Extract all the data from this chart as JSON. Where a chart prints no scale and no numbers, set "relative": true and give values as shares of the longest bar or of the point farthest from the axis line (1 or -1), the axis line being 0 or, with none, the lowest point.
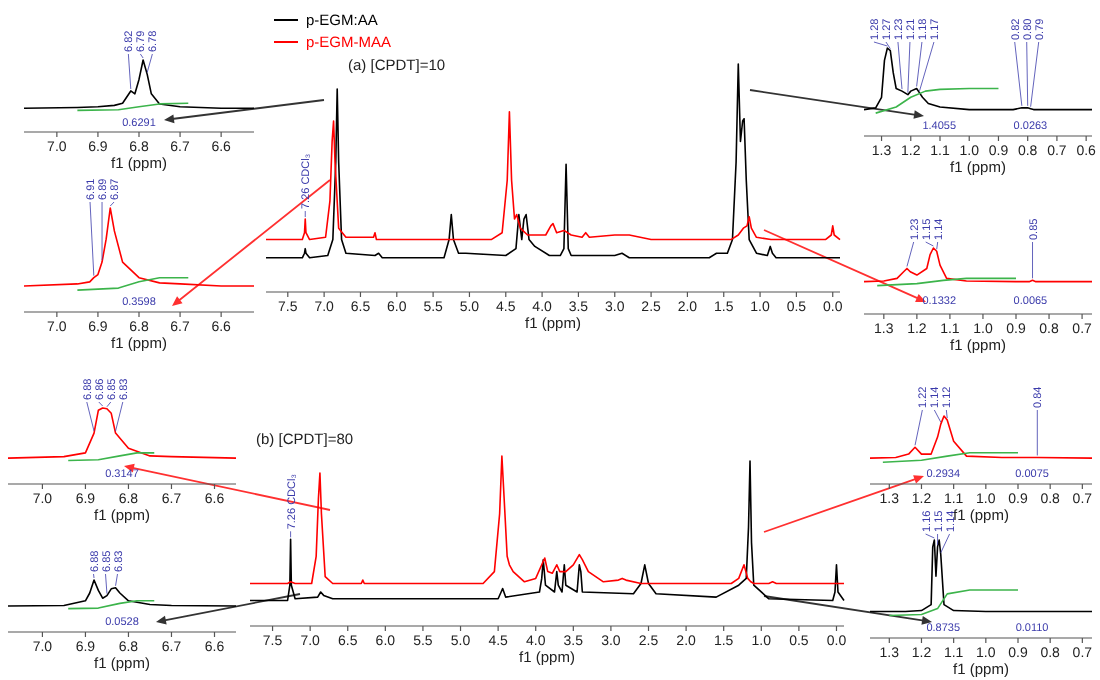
{
  "chart_data": [
    {
      "type": "line",
      "title": "(a) [CPDT]=10",
      "xlabel": "f1 (ppm)",
      "relative": true,
      "xlim": [
        7.8,
        -0.1
      ],
      "xticks": [
        7.5,
        {
          "value": 7,
          "label": "7.0"
        },
        6.5,
        {
          "value": 6,
          "label": "6.0"
        },
        5.5,
        {
          "value": 5,
          "label": "5.0"
        },
        4.5,
        {
          "value": 4,
          "label": "4.0"
        },
        3.5,
        {
          "value": 3,
          "label": "3.0"
        },
        2.5,
        {
          "value": 2,
          "label": "2.0"
        },
        1.5,
        {
          "value": 1,
          "label": "1.0"
        },
        0.5,
        {
          "value": 0,
          "label": "0.0"
        }
      ],
      "legend": "top left",
      "line_style": "solid",
      "series": [
        {
          "name": "p-EGM:AA",
          "color": "#000000",
          "x": [
            7.8,
            7.3,
            7.27,
            7.26,
            7.25,
            7.2,
            6.95,
            6.88,
            6.84,
            6.82,
            6.8,
            6.76,
            6.7,
            6.3,
            6.25,
            6.2,
            5.35,
            5.28,
            5.25,
            5.22,
            5.15,
            5.05,
            4.5,
            4.36,
            4.32,
            4.28,
            4.25,
            4.22,
            4.18,
            4.1,
            3.9,
            3.75,
            3.7,
            3.67,
            3.64,
            3.6,
            3.0,
            2.9,
            2.8,
            1.7,
            1.6,
            1.45,
            1.38,
            1.33,
            1.3,
            1.27,
            1.24,
            1.22,
            1.19,
            1.15,
            1.05,
            0.9,
            0.86,
            0.83,
            0.78,
            0.5,
            -0.1
          ],
          "values": [
            0.15,
            0.15,
            0.17,
            0.19,
            0.17,
            0.15,
            0.16,
            0.23,
            0.57,
            0.89,
            0.57,
            0.23,
            0.17,
            0.16,
            0.17,
            0.15,
            0.15,
            0.23,
            0.34,
            0.23,
            0.17,
            0.17,
            0.16,
            0.19,
            0.34,
            0.23,
            0.32,
            0.34,
            0.23,
            0.2,
            0.16,
            0.16,
            0.19,
            0.56,
            0.19,
            0.16,
            0.16,
            0.17,
            0.15,
            0.15,
            0.17,
            0.17,
            0.23,
            0.57,
            1,
            0.66,
            0.75,
            0.76,
            0.49,
            0.23,
            0.17,
            0.16,
            0.2,
            0.17,
            0.15,
            0.15,
            0.15
          ]
        },
        {
          "name": "p-EGM-MAA",
          "color": "#ff0000",
          "x": [
            7.8,
            7.3,
            7.27,
            7.26,
            7.25,
            7.2,
            6.98,
            6.92,
            6.89,
            6.87,
            6.85,
            6.8,
            6.7,
            6.32,
            6.3,
            6.28,
            4.7,
            4.55,
            4.48,
            4.45,
            4.42,
            4.38,
            4.35,
            4.3,
            4.2,
            3.95,
            3.88,
            3.85,
            3.8,
            3.7,
            3.6,
            3.45,
            3.4,
            3.35,
            3.0,
            2.8,
            2.5,
            1.4,
            1.3,
            1.23,
            1.18,
            1.15,
            1.12,
            1.05,
            0.85,
            0.1,
            0.02,
            0,
            -0.02,
            -0.1
          ],
          "values": [
            0.23,
            0.23,
            0.26,
            0.32,
            0.26,
            0.23,
            0.24,
            0.4,
            0.66,
            0.75,
            0.57,
            0.28,
            0.24,
            0.24,
            0.26,
            0.23,
            0.23,
            0.26,
            0.49,
            0.79,
            0.49,
            0.32,
            0.34,
            0.28,
            0.25,
            0.25,
            0.29,
            0.3,
            0.26,
            0.27,
            0.25,
            0.24,
            0.26,
            0.24,
            0.25,
            0.25,
            0.23,
            0.23,
            0.25,
            0.28,
            0.29,
            0.33,
            0.28,
            0.24,
            0.23,
            0.23,
            0.25,
            0.29,
            0.25,
            0.23
          ]
        }
      ],
      "annotations": [
        {
          "text": "7.26 CDCl₃",
          "x": 7.26,
          "y": 0.32
        }
      ]
    },
    {
      "type": "line",
      "xlabel": "f1 (ppm)",
      "relative": true,
      "xlim": [
        7.08,
        6.52
      ],
      "xticks": [
        {
          "value": 7,
          "label": "7.0"
        },
        6.9,
        6.8,
        6.7,
        6.6
      ],
      "series": [
        {
          "color": "#000000",
          "x": [
            7.08,
            6.95,
            6.9,
            6.86,
            6.84,
            6.82,
            6.81,
            6.8,
            6.79,
            6.78,
            6.77,
            6.75,
            6.7,
            6.6,
            6.52
          ],
          "values": [
            0.33,
            0.34,
            0.35,
            0.37,
            0.4,
            0.57,
            0.53,
            0.73,
            1,
            0.8,
            0.53,
            0.39,
            0.35,
            0.33,
            0.33
          ]
        },
        {
          "color": "#3cb44b",
          "x": [
            6.95,
            6.85,
            6.8,
            6.75,
            6.68
          ],
          "values": [
            0.3,
            0.31,
            0.35,
            0.39,
            0.4
          ]
        }
      ],
      "annotations": [
        {
          "text": "6.82",
          "x": 6.82,
          "y": 0.57
        },
        {
          "text": "6.79",
          "x": 6.79,
          "y": 1
        },
        {
          "text": "6.78",
          "x": 6.78,
          "y": 0.8
        },
        "0.6291"
      ]
    },
    {
      "type": "line",
      "xlabel": "f1 (ppm)",
      "relative": true,
      "xlim": [
        7.08,
        6.52
      ],
      "xticks": [
        {
          "value": 7,
          "label": "7.0"
        },
        6.9,
        6.8,
        6.7,
        6.6
      ],
      "series": [
        {
          "color": "#ff0000",
          "x": [
            7.08,
            6.95,
            6.92,
            6.91,
            6.9,
            6.89,
            6.88,
            6.87,
            6.86,
            6.84,
            6.8,
            6.75,
            6.7,
            6.6,
            6.52
          ],
          "values": [
            0.25,
            0.27,
            0.29,
            0.33,
            0.36,
            0.48,
            0.7,
            1,
            0.78,
            0.48,
            0.33,
            0.28,
            0.27,
            0.25,
            0.25
          ]
        },
        {
          "color": "#3cb44b",
          "x": [
            6.95,
            6.85,
            6.8,
            6.75,
            6.68
          ],
          "values": [
            0.21,
            0.23,
            0.29,
            0.33,
            0.33
          ]
        }
      ],
      "annotations": [
        {
          "text": "6.91",
          "x": 6.91,
          "y": 0.33
        },
        {
          "text": "6.89",
          "x": 6.89,
          "y": 0.48
        },
        {
          "text": "6.87",
          "x": 6.87,
          "y": 1
        },
        "0.3598"
      ]
    },
    {
      "type": "line",
      "xlabel": "f1 (ppm)",
      "relative": true,
      "xlim": [
        1.36,
        0.58
      ],
      "xticks": [
        1.3,
        1.2,
        1.1,
        {
          "value": 1,
          "label": "1.0"
        },
        0.9,
        0.8,
        0.7,
        0.6
      ],
      "series": [
        {
          "color": "#000000",
          "x": [
            1.36,
            1.32,
            1.3,
            1.29,
            1.28,
            1.27,
            1.26,
            1.25,
            1.23,
            1.21,
            1.2,
            1.18,
            1.17,
            1.16,
            1.14,
            1.1,
            1.0,
            0.85,
            0.82,
            0.8,
            0.79,
            0.78,
            0.7,
            0.58
          ],
          "values": [
            0.3,
            0.32,
            0.44,
            0.86,
            1,
            0.97,
            0.72,
            0.54,
            0.51,
            0.47,
            0.51,
            0.54,
            0.49,
            0.44,
            0.37,
            0.33,
            0.3,
            0.3,
            0.32,
            0.32,
            0.31,
            0.3,
            0.3,
            0.3
          ]
        },
        {
          "color": "#3cb44b",
          "x": [
            1.32,
            1.25,
            1.2,
            1.15,
            1.1,
            1.0,
            0.9
          ],
          "values": [
            0.26,
            0.33,
            0.44,
            0.51,
            0.53,
            0.54,
            0.54
          ]
        }
      ],
      "annotations": [
        {
          "text": "1.28",
          "x": 1.28,
          "y": 1
        },
        {
          "text": "1.27",
          "x": 1.27,
          "y": 0.97
        },
        {
          "text": "1.23",
          "x": 1.23,
          "y": 0.51
        },
        {
          "text": "1.21",
          "x": 1.21,
          "y": 0.47
        },
        {
          "text": "1.18",
          "x": 1.18,
          "y": 0.54
        },
        {
          "text": "1.17",
          "x": 1.17,
          "y": 0.49
        },
        {
          "text": "0.82",
          "x": 0.82,
          "y": 0.32
        },
        {
          "text": "0.80",
          "x": 0.8,
          "y": 0.32
        },
        {
          "text": "0.79",
          "x": 0.79,
          "y": 0.31
        },
        "1.4055",
        "0.0263"
      ]
    },
    {
      "type": "line",
      "xlabel": "f1 (ppm)",
      "relative": true,
      "xlim": [
        1.36,
        0.67
      ],
      "xticks": [
        1.3,
        1.2,
        1.1,
        {
          "value": 1,
          "label": "1.0"
        },
        0.9,
        0.8,
        0.7
      ],
      "series": [
        {
          "color": "#ff0000",
          "x": [
            1.36,
            1.3,
            1.26,
            1.24,
            1.23,
            1.22,
            1.2,
            1.17,
            1.16,
            1.15,
            1.14,
            1.13,
            1.11,
            1.05,
            0.9,
            0.86,
            0.85,
            0.84,
            0.8,
            0.67
          ],
          "values": [
            0.49,
            0.5,
            0.54,
            0.64,
            0.69,
            0.64,
            0.59,
            0.69,
            0.9,
            1,
            0.95,
            0.74,
            0.54,
            0.5,
            0.49,
            0.49,
            0.51,
            0.49,
            0.49,
            0.49
          ]
        },
        {
          "color": "#3cb44b",
          "x": [
            1.32,
            1.2,
            1.12,
            1.05,
            0.9
          ],
          "values": [
            0.43,
            0.46,
            0.51,
            0.54,
            0.54
          ]
        }
      ],
      "annotations": [
        {
          "text": "1.23",
          "x": 1.23,
          "y": 0.69
        },
        {
          "text": "1.15",
          "x": 1.15,
          "y": 1
        },
        {
          "text": "1.14",
          "x": 1.14,
          "y": 0.95
        },
        {
          "text": "0.85",
          "x": 0.85,
          "y": 0.51
        },
        "0.1332",
        "0.0065"
      ]
    },
    {
      "type": "line",
      "title": "(b) [CPDT]=80",
      "xlabel": "f1 (ppm)",
      "relative": true,
      "xlim": [
        7.8,
        -0.1
      ],
      "xticks": [
        7.5,
        {
          "value": 7,
          "label": "7.0"
        },
        6.5,
        {
          "value": 6,
          "label": "6.0"
        },
        5.5,
        {
          "value": 5,
          "label": "5.0"
        },
        4.5,
        {
          "value": 4,
          "label": "4.0"
        },
        3.5,
        {
          "value": 3,
          "label": "3.0"
        },
        2.5,
        {
          "value": 2,
          "label": "2.0"
        },
        1.5,
        {
          "value": 1,
          "label": "1.0"
        },
        0.5,
        {
          "value": 0,
          "label": "0.0"
        }
      ],
      "series": [
        {
          "color": "#000000",
          "x": [
            7.8,
            7.3,
            7.27,
            7.26,
            7.25,
            7.2,
            6.9,
            6.86,
            6.82,
            6.7,
            4.5,
            4.46,
            4.44,
            4.4,
            3.95,
            3.92,
            3.9,
            3.87,
            3.75,
            3.72,
            3.7,
            3.65,
            3.62,
            3.6,
            3.45,
            3.42,
            3.4,
            3.38,
            2.7,
            2.6,
            2.55,
            2.5,
            2.4,
            1.6,
            1.3,
            1.2,
            1.17,
            1.15,
            1.13,
            1.1,
            0.9,
            0.05,
            0.02,
            0,
            -0.02,
            -0.1
          ],
          "values": [
            0.15,
            0.15,
            0.24,
            0.51,
            0.24,
            0.16,
            0.17,
            0.2,
            0.18,
            0.16,
            0.16,
            0.2,
            0.22,
            0.17,
            0.2,
            0.28,
            0.39,
            0.24,
            0.2,
            0.32,
            0.24,
            0.2,
            0.36,
            0.24,
            0.2,
            0.36,
            0.32,
            0.2,
            0.19,
            0.25,
            0.36,
            0.25,
            0.19,
            0.17,
            0.24,
            0.28,
            0.58,
            0.97,
            0.49,
            0.24,
            0.16,
            0.15,
            0.2,
            0.36,
            0.2,
            0.15
          ]
        },
        {
          "color": "#ff0000",
          "x": [
            7.8,
            7.3,
            7.26,
            7.2,
            6.98,
            6.92,
            6.89,
            6.87,
            6.85,
            6.8,
            6.7,
            6.32,
            6.3,
            6.28,
            4.7,
            4.55,
            4.48,
            4.45,
            4.42,
            4.38,
            4.35,
            4.3,
            4.15,
            4.0,
            3.92,
            3.88,
            3.84,
            3.78,
            3.72,
            3.68,
            3.6,
            3.5,
            3.42,
            3.38,
            3.3,
            3.1,
            2.9,
            2.85,
            2.8,
            2.6,
            1.4,
            1.3,
            1.23,
            1.18,
            1.14,
            1.1,
            0.9,
            0.85,
            0.8,
            -0.1
          ],
          "values": [
            0.25,
            0.25,
            0.26,
            0.25,
            0.25,
            0.41,
            0.75,
            0.9,
            0.66,
            0.29,
            0.25,
            0.25,
            0.27,
            0.25,
            0.25,
            0.32,
            0.66,
            1,
            0.75,
            0.41,
            0.36,
            0.32,
            0.26,
            0.28,
            0.36,
            0.4,
            0.32,
            0.31,
            0.36,
            0.32,
            0.32,
            0.36,
            0.42,
            0.39,
            0.32,
            0.26,
            0.27,
            0.28,
            0.27,
            0.25,
            0.25,
            0.28,
            0.36,
            0.28,
            0.26,
            0.25,
            0.25,
            0.26,
            0.25,
            0.25
          ]
        }
      ],
      "annotations": [
        {
          "text": "7.26 CDCl₃",
          "x": 7.26,
          "y": 0.51
        }
      ]
    },
    {
      "type": "line",
      "xlabel": "f1 (ppm)",
      "relative": true,
      "xlim": [
        7.08,
        6.55
      ],
      "xticks": [
        {
          "value": 7,
          "label": "7.0"
        },
        6.9,
        6.8,
        6.7,
        6.6
      ],
      "series": [
        {
          "color": "#ff0000",
          "x": [
            7.08,
            6.95,
            6.9,
            6.88,
            6.87,
            6.86,
            6.85,
            6.84,
            6.83,
            6.8,
            6.75,
            6.7,
            6.55
          ],
          "values": [
            0.34,
            0.36,
            0.41,
            0.67,
            0.97,
            1,
            0.99,
            0.93,
            0.67,
            0.47,
            0.37,
            0.36,
            0.34
          ]
        },
        {
          "color": "#3cb44b",
          "x": [
            6.94,
            6.87,
            6.82,
            6.78,
            6.74
          ],
          "values": [
            0.31,
            0.32,
            0.37,
            0.41,
            0.41
          ]
        }
      ],
      "annotations": [
        {
          "text": "6.88",
          "x": 6.88,
          "y": 0.67
        },
        {
          "text": "6.86",
          "x": 6.86,
          "y": 1
        },
        {
          "text": "6.85",
          "x": 6.85,
          "y": 0.99
        },
        {
          "text": "6.83",
          "x": 6.83,
          "y": 0.67
        },
        "0.3147"
      ]
    },
    {
      "type": "line",
      "xlabel": "f1 (ppm)",
      "relative": true,
      "xlim": [
        7.08,
        6.55
      ],
      "xticks": [
        {
          "value": 7,
          "label": "7.0"
        },
        6.9,
        6.8,
        6.7,
        6.6
      ],
      "series": [
        {
          "color": "#000000",
          "x": [
            7.08,
            6.95,
            6.9,
            6.89,
            6.88,
            6.87,
            6.86,
            6.85,
            6.84,
            6.83,
            6.82,
            6.8,
            6.75,
            6.7,
            6.55
          ],
          "values": [
            0.5,
            0.51,
            0.6,
            0.75,
            1,
            0.8,
            0.65,
            0.7,
            0.83,
            0.85,
            0.75,
            0.6,
            0.53,
            0.51,
            0.5
          ]
        },
        {
          "color": "#3cb44b",
          "x": [
            6.94,
            6.87,
            6.82,
            6.78,
            6.74
          ],
          "values": [
            0.45,
            0.46,
            0.55,
            0.6,
            0.6
          ]
        }
      ],
      "annotations": [
        {
          "text": "6.88",
          "x": 6.88,
          "y": 1
        },
        {
          "text": "6.85",
          "x": 6.85,
          "y": 0.7
        },
        {
          "text": "6.83",
          "x": 6.83,
          "y": 0.85
        },
        "0.0528"
      ]
    },
    {
      "type": "line",
      "xlabel": "f1 (ppm)",
      "relative": true,
      "xlim": [
        1.36,
        0.67
      ],
      "xticks": [
        1.3,
        1.2,
        1.1,
        {
          "value": 1,
          "label": "1.0"
        },
        0.9,
        0.8,
        0.7
      ],
      "series": [
        {
          "color": "#ff0000",
          "x": [
            1.36,
            1.28,
            1.24,
            1.22,
            1.2,
            1.17,
            1.15,
            1.14,
            1.13,
            1.12,
            1.1,
            1.06,
            0.95,
            0.84,
            0.67
          ],
          "values": [
            0.38,
            0.39,
            0.44,
            0.54,
            0.44,
            0.44,
            0.69,
            0.88,
            1,
            0.94,
            0.63,
            0.41,
            0.39,
            0.39,
            0.38
          ]
        },
        {
          "color": "#3cb44b",
          "x": [
            1.32,
            1.2,
            1.12,
            1.05,
            0.9
          ],
          "values": [
            0.32,
            0.35,
            0.41,
            0.46,
            0.46
          ]
        }
      ],
      "annotations": [
        {
          "text": "1.22",
          "x": 1.22,
          "y": 0.54
        },
        {
          "text": "1.14",
          "x": 1.14,
          "y": 0.88
        },
        {
          "text": "1.12",
          "x": 1.12,
          "y": 0.94
        },
        {
          "text": "0.84",
          "x": 0.84,
          "y": 0.39
        },
        "0.2934",
        "0.0075"
      ]
    },
    {
      "type": "line",
      "xlabel": "f1 (ppm)",
      "relative": true,
      "xlim": [
        1.36,
        0.67
      ],
      "xticks": [
        1.3,
        1.2,
        1.1,
        {
          "value": 1,
          "label": "1.0"
        },
        0.9,
        0.8,
        0.7
      ],
      "series": [
        {
          "color": "#000000",
          "x": [
            1.36,
            1.25,
            1.2,
            1.17,
            1.165,
            1.16,
            1.155,
            1.15,
            1.145,
            1.14,
            1.13,
            1.1,
            1.0,
            0.67
          ],
          "values": [
            0.27,
            0.27,
            0.28,
            0.34,
            0.93,
            1,
            0.63,
            0.93,
            1,
            0.85,
            0.34,
            0.28,
            0.27,
            0.27
          ]
        },
        {
          "color": "#3cb44b",
          "x": [
            1.3,
            1.2,
            1.15,
            1.12,
            1.05,
            0.9
          ],
          "values": [
            0.23,
            0.24,
            0.3,
            0.45,
            0.49,
            0.49
          ]
        }
      ],
      "annotations": [
        {
          "text": "1.16",
          "x": 1.16,
          "y": 1
        },
        {
          "text": "1.15",
          "x": 1.15,
          "y": 0.93
        },
        {
          "text": "1.14",
          "x": 1.14,
          "y": 0.85
        },
        "0.8735",
        "0.0110"
      ]
    }
  ]
}
